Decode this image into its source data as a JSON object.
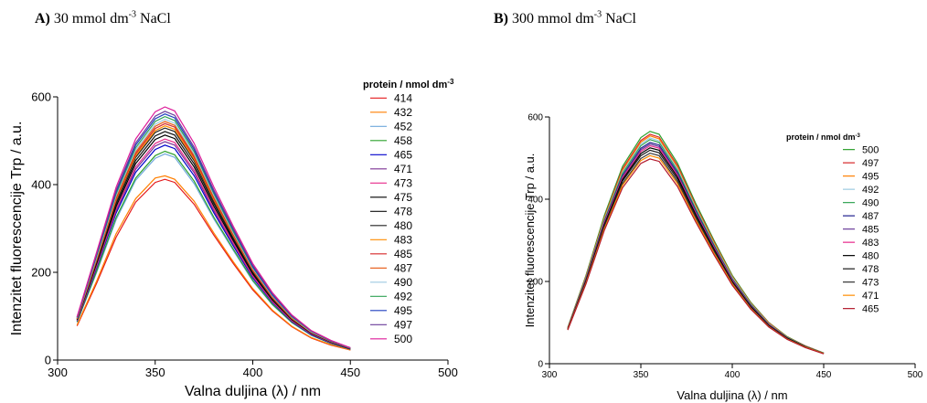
{
  "panels": {
    "a": {
      "letter": "A)",
      "label": "30 mmol dm",
      "exp": "-3",
      "salt": "NaCl"
    },
    "b": {
      "letter": "B)",
      "label": "300 mmol dm",
      "exp": "-3",
      "salt": "NaCl"
    }
  },
  "chart_data": [
    {
      "type": "line",
      "ylabel": "Intenzitet fluorescencije Trp / a.u.",
      "xlabel": "Valna duljina (λ) / nm",
      "xlim": [
        300,
        500
      ],
      "ylim": [
        0,
        600
      ],
      "xticks": [
        "300",
        "350",
        "400",
        "450",
        "500"
      ],
      "yticks": [
        "0",
        "200",
        "400",
        "600"
      ],
      "grid": false,
      "legend_title": "protein / nmol dm",
      "legend_title_exp": "-3",
      "legend_position": "right",
      "x": [
        310,
        320,
        330,
        340,
        350,
        355,
        360,
        370,
        380,
        390,
        400,
        410,
        420,
        430,
        440,
        450
      ],
      "series": [
        {
          "name": "414",
          "color": "#e41a1c",
          "values": [
            78,
            175,
            280,
            360,
            405,
            412,
            405,
            355,
            285,
            220,
            160,
            112,
            76,
            50,
            34,
            23
          ]
        },
        {
          "name": "432",
          "color": "#ff7f00",
          "values": [
            80,
            180,
            288,
            368,
            415,
            420,
            412,
            362,
            290,
            224,
            163,
            114,
            77,
            51,
            35,
            23
          ]
        },
        {
          "name": "452",
          "color": "#6fa8dc",
          "values": [
            86,
            200,
            320,
            410,
            460,
            470,
            462,
            402,
            322,
            250,
            180,
            126,
            85,
            56,
            38,
            25
          ]
        },
        {
          "name": "458",
          "color": "#2ca02c",
          "values": [
            87,
            203,
            325,
            415,
            466,
            476,
            468,
            408,
            326,
            253,
            182,
            127,
            86,
            57,
            38,
            25
          ]
        },
        {
          "name": "465",
          "color": "#0000cc",
          "values": [
            89,
            210,
            335,
            428,
            480,
            490,
            482,
            420,
            336,
            260,
            187,
            131,
            88,
            58,
            39,
            25
          ]
        },
        {
          "name": "471",
          "color": "#7b3294",
          "values": [
            90,
            213,
            340,
            435,
            488,
            498,
            490,
            427,
            341,
            264,
            190,
            133,
            89,
            59,
            40,
            26
          ]
        },
        {
          "name": "473",
          "color": "#e7298a",
          "values": [
            91,
            216,
            344,
            440,
            494,
            504,
            496,
            432,
            345,
            267,
            192,
            134,
            90,
            60,
            40,
            26
          ]
        },
        {
          "name": "475",
          "color": "#000000",
          "values": [
            92,
            220,
            350,
            448,
            503,
            513,
            505,
            440,
            351,
            272,
            196,
            137,
            92,
            61,
            41,
            26
          ]
        },
        {
          "name": "478",
          "color": "#111111",
          "values": [
            93,
            223,
            356,
            455,
            511,
            521,
            513,
            447,
            357,
            276,
            199,
            139,
            93,
            62,
            41,
            26
          ]
        },
        {
          "name": "480",
          "color": "#222222",
          "values": [
            94,
            226,
            362,
            462,
            519,
            529,
            521,
            454,
            362,
            280,
            202,
            141,
            94,
            62,
            42,
            27
          ]
        },
        {
          "name": "483",
          "color": "#ff8c00",
          "values": [
            94,
            228,
            365,
            466,
            523,
            534,
            526,
            458,
            366,
            283,
            204,
            142,
            95,
            63,
            42,
            27
          ]
        },
        {
          "name": "485",
          "color": "#d62728",
          "values": [
            95,
            230,
            368,
            470,
            528,
            539,
            531,
            462,
            369,
            285,
            205,
            143,
            96,
            63,
            42,
            27
          ]
        },
        {
          "name": "487",
          "color": "#e6550d",
          "values": [
            95,
            232,
            371,
            474,
            533,
            544,
            535,
            466,
            372,
            288,
            207,
            145,
            97,
            64,
            43,
            27
          ]
        },
        {
          "name": "490",
          "color": "#9ecae1",
          "values": [
            96,
            234,
            375,
            479,
            538,
            549,
            540,
            470,
            376,
            290,
            209,
            146,
            98,
            64,
            43,
            27
          ]
        },
        {
          "name": "492",
          "color": "#31a354",
          "values": [
            97,
            237,
            379,
            484,
            544,
            555,
            546,
            475,
            380,
            293,
            211,
            148,
            99,
            65,
            43,
            27
          ]
        },
        {
          "name": "495",
          "color": "#1f3fbf",
          "values": [
            97,
            240,
            383,
            490,
            550,
            561,
            552,
            480,
            384,
            297,
            213,
            149,
            100,
            66,
            44,
            28
          ]
        },
        {
          "name": "497",
          "color": "#6a3d9a",
          "values": [
            98,
            242,
            387,
            495,
            556,
            567,
            558,
            485,
            388,
            300,
            216,
            151,
            101,
            66,
            44,
            28
          ]
        },
        {
          "name": "500",
          "color": "#dd1c9a",
          "values": [
            99,
            246,
            394,
            504,
            566,
            577,
            568,
            494,
            395,
            305,
            220,
            154,
            103,
            67,
            45,
            28
          ]
        }
      ]
    },
    {
      "type": "line",
      "ylabel": "Intenzitet fluorescencije Trp / a.u.",
      "xlabel": "Valna duljina (λ) / nm",
      "xlim": [
        300,
        500
      ],
      "ylim": [
        0,
        600
      ],
      "xticks": [
        "300",
        "350",
        "400",
        "450",
        "500"
      ],
      "yticks": [
        "0",
        "200",
        "400",
        "600"
      ],
      "grid": false,
      "legend_title": "protein / nmol dm",
      "legend_title_exp": "-3",
      "legend_position": "right",
      "x": [
        310,
        320,
        330,
        340,
        350,
        355,
        360,
        370,
        380,
        390,
        400,
        410,
        420,
        430,
        440,
        450
      ],
      "series": [
        {
          "name": "500",
          "color": "#2ca02c",
          "values": [
            88,
            215,
            360,
            480,
            550,
            565,
            558,
            488,
            390,
            300,
            215,
            150,
            100,
            66,
            43,
            26
          ]
        },
        {
          "name": "497",
          "color": "#d62728",
          "values": [
            87,
            212,
            355,
            474,
            543,
            558,
            551,
            482,
            385,
            296,
            212,
            148,
            99,
            65,
            43,
            26
          ]
        },
        {
          "name": "495",
          "color": "#ff7f00",
          "values": [
            87,
            211,
            353,
            470,
            539,
            554,
            547,
            478,
            382,
            294,
            211,
            147,
            98,
            65,
            42,
            26
          ]
        },
        {
          "name": "492",
          "color": "#9ecae1",
          "values": [
            86,
            209,
            350,
            466,
            534,
            549,
            542,
            474,
            379,
            291,
            209,
            146,
            97,
            64,
            42,
            26
          ]
        },
        {
          "name": "490",
          "color": "#31a354",
          "values": [
            86,
            208,
            348,
            463,
            530,
            545,
            538,
            470,
            376,
            289,
            207,
            145,
            96,
            64,
            42,
            26
          ]
        },
        {
          "name": "487",
          "color": "#1f1f8f",
          "values": [
            85,
            206,
            345,
            458,
            524,
            538,
            532,
            465,
            372,
            286,
            205,
            143,
            95,
            63,
            41,
            25
          ]
        },
        {
          "name": "485",
          "color": "#6a3d9a",
          "values": [
            85,
            205,
            343,
            455,
            520,
            534,
            528,
            461,
            369,
            284,
            204,
            142,
            95,
            63,
            41,
            25
          ]
        },
        {
          "name": "483",
          "color": "#e7298a",
          "values": [
            85,
            204,
            341,
            452,
            516,
            530,
            524,
            458,
            366,
            282,
            202,
            141,
            94,
            62,
            41,
            25
          ]
        },
        {
          "name": "480",
          "color": "#000000",
          "values": [
            84,
            202,
            338,
            448,
            511,
            525,
            519,
            454,
            363,
            279,
            200,
            140,
            93,
            62,
            41,
            25
          ]
        },
        {
          "name": "478",
          "color": "#1a1a1a",
          "values": [
            84,
            200,
            335,
            444,
            506,
            519,
            513,
            449,
            359,
            276,
            198,
            138,
            92,
            61,
            40,
            25
          ]
        },
        {
          "name": "473",
          "color": "#333333",
          "values": [
            83,
            198,
            331,
            438,
            499,
            512,
            506,
            443,
            354,
            272,
            196,
            137,
            91,
            60,
            40,
            25
          ]
        },
        {
          "name": "471",
          "color": "#ff8c00",
          "values": [
            83,
            196,
            328,
            434,
            494,
            506,
            500,
            438,
            350,
            269,
            194,
            135,
            90,
            60,
            40,
            25
          ]
        },
        {
          "name": "465",
          "color": "#b2182b",
          "values": [
            82,
            194,
            324,
            428,
            487,
            498,
            492,
            431,
            345,
            265,
            191,
            133,
            89,
            59,
            39,
            24
          ]
        }
      ]
    }
  ]
}
